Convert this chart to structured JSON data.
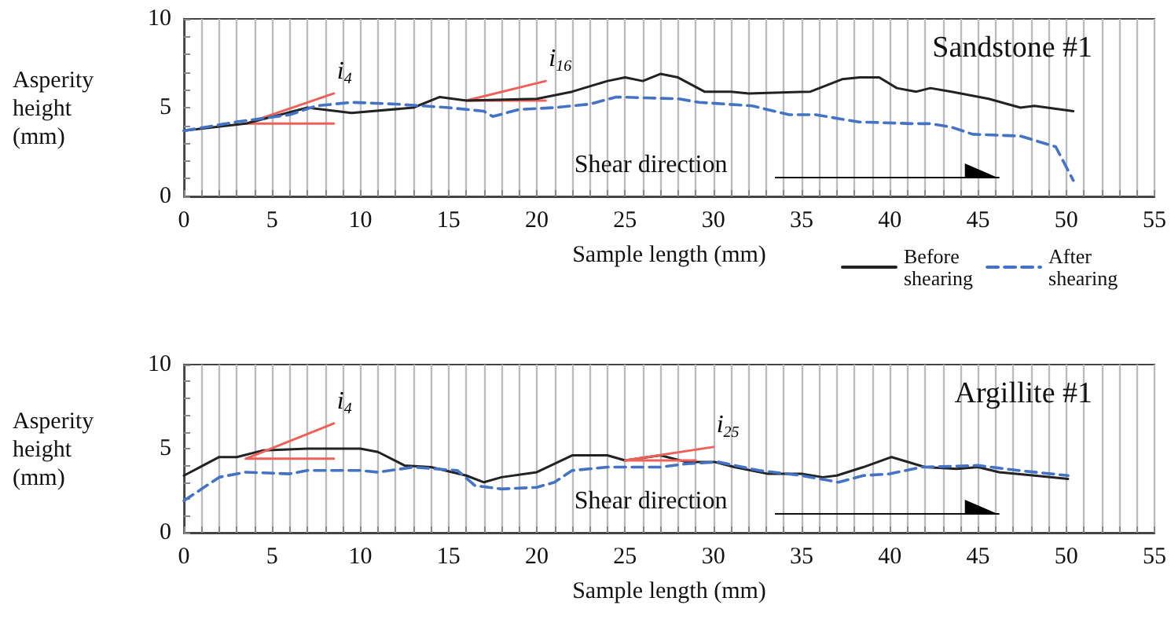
{
  "chart_data": [
    {
      "type": "line",
      "title": "Sandstone #1",
      "xlabel": "Sample length (mm)",
      "ylabel": "Asperity height (mm)",
      "xlim": [
        0,
        55
      ],
      "ylim": [
        0,
        10
      ],
      "xticks": [
        0,
        {
          "value": 1,
          "label": null
        },
        {
          "value": 2,
          "label": null
        },
        {
          "value": 3,
          "label": null
        },
        {
          "value": 4,
          "label": null
        },
        5,
        {
          "value": 6,
          "label": null
        },
        {
          "value": 7,
          "label": null
        },
        {
          "value": 8,
          "label": null
        },
        {
          "value": 9,
          "label": null
        },
        10,
        {
          "value": 11,
          "label": null
        },
        {
          "value": 12,
          "label": null
        },
        {
          "value": 13,
          "label": null
        },
        {
          "value": 14,
          "label": null
        },
        15,
        {
          "value": 16,
          "label": null
        },
        {
          "value": 17,
          "label": null
        },
        {
          "value": 18,
          "label": null
        },
        {
          "value": 19,
          "label": null
        },
        20,
        {
          "value": 21,
          "label": null
        },
        {
          "value": 22,
          "label": null
        },
        {
          "value": 23,
          "label": null
        },
        {
          "value": 24,
          "label": null
        },
        25,
        {
          "value": 26,
          "label": null
        },
        {
          "value": 27,
          "label": null
        },
        {
          "value": 28,
          "label": null
        },
        {
          "value": 29,
          "label": null
        },
        30,
        {
          "value": 31,
          "label": null
        },
        {
          "value": 32,
          "label": null
        },
        {
          "value": 33,
          "label": null
        },
        {
          "value": 34,
          "label": null
        },
        35,
        {
          "value": 36,
          "label": null
        },
        {
          "value": 37,
          "label": null
        },
        {
          "value": 38,
          "label": null
        },
        {
          "value": 39,
          "label": null
        },
        40,
        {
          "value": 41,
          "label": null
        },
        {
          "value": 42,
          "label": null
        },
        {
          "value": 43,
          "label": null
        },
        {
          "value": 44,
          "label": null
        },
        45,
        {
          "value": 46,
          "label": null
        },
        {
          "value": 47,
          "label": null
        },
        {
          "value": 48,
          "label": null
        },
        {
          "value": 49,
          "label": null
        },
        50,
        {
          "value": 51,
          "label": null
        },
        {
          "value": 52,
          "label": null
        },
        {
          "value": 53,
          "label": null
        },
        {
          "value": 54,
          "label": null
        },
        55
      ],
      "yticks": [
        0,
        {
          "value": 1,
          "label": null
        },
        {
          "value": 2,
          "label": null
        },
        {
          "value": 3,
          "label": null
        },
        {
          "value": 4,
          "label": null
        },
        5,
        {
          "value": 6,
          "label": null
        },
        {
          "value": 7,
          "label": null
        },
        {
          "value": 8,
          "label": null
        },
        {
          "value": 9,
          "label": null
        },
        10
      ],
      "grid": "x",
      "legend": "bottom right",
      "marker": "none",
      "series": [
        {
          "name": "Before shearing",
          "color": "#222222",
          "line_style": "solid",
          "x": [
            0,
            3.5,
            7,
            9.5,
            13,
            14.5,
            16,
            20,
            22,
            24,
            25,
            26,
            27,
            28,
            29.5,
            31,
            32,
            35.5,
            37.3,
            38.3,
            39.4,
            40.4,
            41.5,
            42.3,
            43.5,
            45.6,
            47.4,
            48.2,
            50.4
          ],
          "values": [
            3.7,
            4.1,
            5.0,
            4.7,
            5.0,
            5.6,
            5.4,
            5.5,
            5.9,
            6.5,
            6.7,
            6.5,
            6.9,
            6.7,
            5.9,
            5.9,
            5.8,
            5.9,
            6.6,
            6.7,
            6.7,
            6.1,
            5.9,
            6.1,
            5.9,
            5.5,
            5.0,
            5.1,
            4.8
          ]
        },
        {
          "name": "After shearing",
          "color": "#4472c4",
          "line_style": "dashed",
          "x": [
            0,
            3,
            6,
            7.5,
            9.5,
            12,
            15,
            17,
            17.5,
            19,
            21,
            23,
            24.5,
            28,
            29.2,
            32.2,
            34.3,
            35.8,
            38.2,
            41.2,
            42.3,
            43.5,
            44.7,
            47.4,
            49.4,
            50.4
          ],
          "values": [
            3.7,
            4.2,
            4.6,
            5.1,
            5.3,
            5.2,
            5.0,
            4.8,
            4.5,
            4.9,
            5.0,
            5.2,
            5.6,
            5.5,
            5.3,
            5.1,
            4.6,
            4.6,
            4.2,
            4.1,
            4.1,
            3.9,
            3.5,
            3.4,
            2.8,
            0.9
          ]
        },
        {
          "color": "#f0605a",
          "line_style": "solid",
          "x": [
            8.5,
            3.5,
            8.5
          ],
          "values": [
            4.1,
            4.1,
            5.8
          ]
        },
        {
          "color": "#f0605a",
          "line_style": "solid",
          "x": [
            20.5,
            16,
            20.5
          ],
          "values": [
            5.4,
            5.4,
            6.5
          ]
        }
      ],
      "annotations": [
        {
          "text": "i$_{4}$",
          "x": 8.5,
          "y": 5.8
        },
        {
          "text": "i$_{16}$",
          "x": 20.5,
          "y": 6.5
        },
        "Shear direction"
      ]
    },
    {
      "type": "line",
      "title": "Argillite #1",
      "xlabel": "Sample length (mm)",
      "ylabel": "Asperity height (mm)",
      "xlim": [
        0,
        55
      ],
      "ylim": [
        0,
        10
      ],
      "xticks": [
        0,
        {
          "value": 1,
          "label": null
        },
        {
          "value": 2,
          "label": null
        },
        {
          "value": 3,
          "label": null
        },
        {
          "value": 4,
          "label": null
        },
        5,
        {
          "value": 6,
          "label": null
        },
        {
          "value": 7,
          "label": null
        },
        {
          "value": 8,
          "label": null
        },
        {
          "value": 9,
          "label": null
        },
        10,
        {
          "value": 11,
          "label": null
        },
        {
          "value": 12,
          "label": null
        },
        {
          "value": 13,
          "label": null
        },
        {
          "value": 14,
          "label": null
        },
        15,
        {
          "value": 16,
          "label": null
        },
        {
          "value": 17,
          "label": null
        },
        {
          "value": 18,
          "label": null
        },
        {
          "value": 19,
          "label": null
        },
        20,
        {
          "value": 21,
          "label": null
        },
        {
          "value": 22,
          "label": null
        },
        {
          "value": 23,
          "label": null
        },
        {
          "value": 24,
          "label": null
        },
        25,
        {
          "value": 26,
          "label": null
        },
        {
          "value": 27,
          "label": null
        },
        {
          "value": 28,
          "label": null
        },
        {
          "value": 29,
          "label": null
        },
        30,
        {
          "value": 31,
          "label": null
        },
        {
          "value": 32,
          "label": null
        },
        {
          "value": 33,
          "label": null
        },
        {
          "value": 34,
          "label": null
        },
        35,
        {
          "value": 36,
          "label": null
        },
        {
          "value": 37,
          "label": null
        },
        {
          "value": 38,
          "label": null
        },
        {
          "value": 39,
          "label": null
        },
        40,
        {
          "value": 41,
          "label": null
        },
        {
          "value": 42,
          "label": null
        },
        {
          "value": 43,
          "label": null
        },
        {
          "value": 44,
          "label": null
        },
        45,
        {
          "value": 46,
          "label": null
        },
        {
          "value": 47,
          "label": null
        },
        {
          "value": 48,
          "label": null
        },
        {
          "value": 49,
          "label": null
        },
        50,
        {
          "value": 51,
          "label": null
        },
        {
          "value": 52,
          "label": null
        },
        {
          "value": 53,
          "label": null
        },
        {
          "value": 54,
          "label": null
        },
        55
      ],
      "yticks": [
        0,
        {
          "value": 1,
          "label": null
        },
        {
          "value": 2,
          "label": null
        },
        {
          "value": 3,
          "label": null
        },
        {
          "value": 4,
          "label": null
        },
        5,
        {
          "value": 6,
          "label": null
        },
        {
          "value": 7,
          "label": null
        },
        {
          "value": 8,
          "label": null
        },
        {
          "value": 9,
          "label": null
        },
        10
      ],
      "grid": "x",
      "legend": false,
      "marker": "none",
      "series": [
        {
          "color": "#222222",
          "line_style": "solid",
          "x": [
            0,
            2,
            3,
            4.5,
            7,
            10,
            11,
            12.5,
            14,
            16,
            17,
            18,
            20,
            22,
            24,
            25,
            27,
            28.5,
            30.1,
            31.2,
            33.1,
            35,
            36.2,
            37,
            38.5,
            40.1,
            42,
            43.8,
            45,
            46.2,
            48.2,
            50.1
          ],
          "values": [
            3.4,
            4.5,
            4.5,
            4.9,
            5.0,
            5.0,
            4.8,
            4.0,
            3.9,
            3.4,
            3.0,
            3.3,
            3.6,
            4.6,
            4.6,
            4.3,
            4.6,
            4.2,
            4.2,
            3.9,
            3.5,
            3.5,
            3.3,
            3.4,
            3.9,
            4.5,
            3.9,
            3.8,
            3.9,
            3.6,
            3.4,
            3.2
          ]
        },
        {
          "color": "#4472c4",
          "line_style": "dashed",
          "x": [
            0,
            1,
            2,
            3.5,
            6,
            7,
            10,
            11,
            13,
            15.5,
            16.5,
            18,
            20,
            21,
            22,
            24,
            27,
            28.5,
            30.3,
            32.6,
            35,
            37.1,
            38.5,
            40,
            41.8,
            45,
            47.3,
            50.1
          ],
          "values": [
            1.9,
            2.6,
            3.3,
            3.6,
            3.5,
            3.7,
            3.7,
            3.6,
            3.9,
            3.7,
            2.8,
            2.6,
            2.7,
            3.0,
            3.7,
            3.9,
            3.9,
            4.1,
            4.2,
            3.7,
            3.4,
            3.0,
            3.4,
            3.5,
            3.9,
            4.0,
            3.7,
            3.4
          ]
        },
        {
          "color": "#f0605a",
          "line_style": "solid",
          "x": [
            8.5,
            3.5,
            8.5
          ],
          "values": [
            4.4,
            4.4,
            6.5
          ]
        },
        {
          "color": "#f0605a",
          "line_style": "solid",
          "x": [
            29,
            25,
            30
          ],
          "values": [
            4.3,
            4.3,
            5.1
          ]
        }
      ],
      "annotations": [
        {
          "text": "i$_{4}$",
          "x": 8.5,
          "y": 6.5
        },
        {
          "text": "i$_{25}$",
          "x": 30,
          "y": 5.1
        },
        "Shear direction"
      ]
    }
  ]
}
